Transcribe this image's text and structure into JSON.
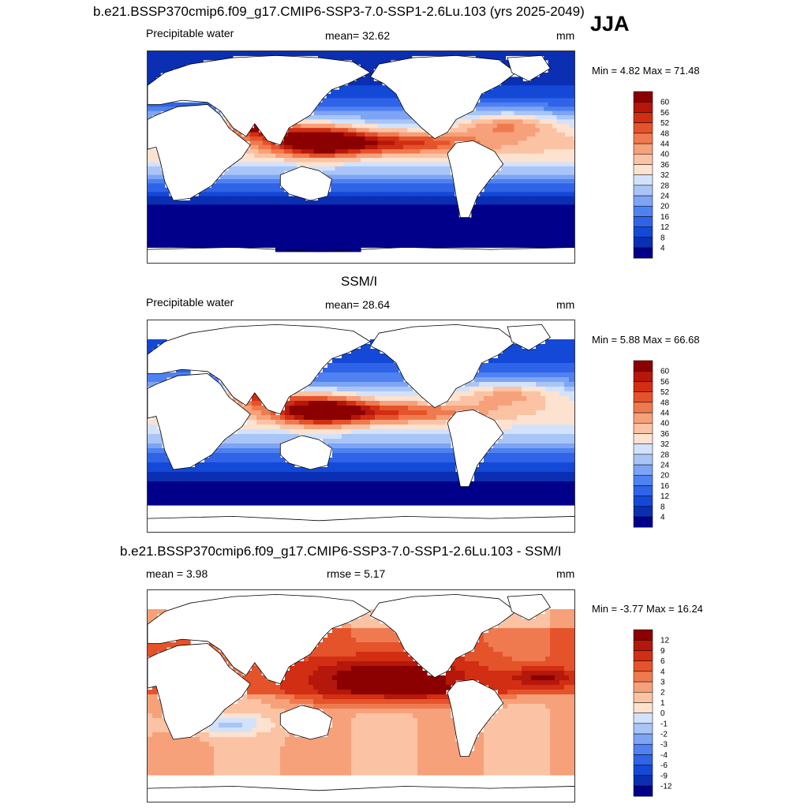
{
  "figure": {
    "title": "b.e21.BSSP370cmip6.f09_g17.CMIP6-SSP3-7.0-SSP1-2.6Lu.103 (yrs 2025-2049)",
    "season": "JJA"
  },
  "panels": [
    {
      "id": "model",
      "heading": "",
      "left_label": "Precipitable water",
      "center_label": "mean=  32.62",
      "units": "mm",
      "minmax": "Min =   4.82 Max =  71.48"
    },
    {
      "id": "obs",
      "heading": "SSM/I",
      "left_label": "Precipitable water",
      "center_label": "mean=  28.64",
      "units": "mm",
      "minmax": "Min =   5.88 Max =  66.68"
    },
    {
      "id": "diff",
      "heading": "b.e21.BSSP370cmip6.f09_g17.CMIP6-SSP3-7.0-SSP1-2.6Lu.103 - SSM/I",
      "left_label": "mean =   3.98",
      "center_label": "rmse =   5.17",
      "units": "mm",
      "minmax": "Min =  -3.77 Max =  16.24"
    }
  ],
  "chart_data": [
    {
      "type": "heatmap",
      "title": "b.e21.BSSP370cmip6.f09_g17.CMIP6-SSP3-7.0-SSP1-2.6Lu.103 (yrs 2025-2049)",
      "subtitle": "Precipitable water",
      "units": "mm",
      "mean": 32.62,
      "min": 4.82,
      "max": 71.48,
      "colorbar_levels": [
        4,
        8,
        12,
        16,
        20,
        24,
        28,
        32,
        36,
        40,
        44,
        48,
        52,
        56,
        60
      ],
      "colors": [
        "#00008b",
        "#0a2fb3",
        "#1448d6",
        "#2f63e8",
        "#4f81f0",
        "#7ea4f5",
        "#a9c5f7",
        "#d3e2fb",
        "#fde2d0",
        "#fbc3a3",
        "#f6a17a",
        "#f07a4f",
        "#e5532b",
        "#d22e13",
        "#b5170a",
        "#8b0000"
      ],
      "regions_approx": [
        {
          "region": "western Pacific warm pool",
          "value": 60
        },
        {
          "region": "Bay of Bengal / South Asia",
          "value": 64
        },
        {
          "region": "equatorial Pacific",
          "value": 52
        },
        {
          "region": "tropical Atlantic",
          "value": 44
        },
        {
          "region": "subtropical oceans",
          "value": 28
        },
        {
          "region": "southern midlatitude oceans",
          "value": 14
        },
        {
          "region": "Southern Ocean",
          "value": 6
        }
      ]
    },
    {
      "type": "heatmap",
      "title": "SSM/I",
      "subtitle": "Precipitable water",
      "units": "mm",
      "mean": 28.64,
      "min": 5.88,
      "max": 66.68,
      "colorbar_levels": [
        4,
        8,
        12,
        16,
        20,
        24,
        28,
        32,
        36,
        40,
        44,
        48,
        52,
        56,
        60
      ],
      "colors": [
        "#00008b",
        "#0a2fb3",
        "#1448d6",
        "#2f63e8",
        "#4f81f0",
        "#7ea4f5",
        "#a9c5f7",
        "#d3e2fb",
        "#fde2d0",
        "#fbc3a3",
        "#f6a17a",
        "#f07a4f",
        "#e5532b",
        "#d22e13",
        "#b5170a",
        "#8b0000"
      ],
      "regions_approx": [
        {
          "region": "western Pacific warm pool",
          "value": 56
        },
        {
          "region": "Bay of Bengal",
          "value": 52
        },
        {
          "region": "equatorial Pacific",
          "value": 48
        },
        {
          "region": "tropical Atlantic",
          "value": 40
        },
        {
          "region": "subtropical oceans",
          "value": 26
        },
        {
          "region": "southern midlatitude oceans",
          "value": 12
        },
        {
          "region": "Southern Ocean",
          "value": 8
        }
      ]
    },
    {
      "type": "heatmap",
      "title": "b.e21.BSSP370cmip6.f09_g17.CMIP6-SSP3-7.0-SSP1-2.6Lu.103 - SSM/I",
      "units": "mm",
      "mean": 3.98,
      "rmse": 5.17,
      "min": -3.77,
      "max": 16.24,
      "colorbar_levels": [
        -12,
        -9,
        -6,
        -4,
        -3,
        -2,
        -1,
        0,
        1,
        2,
        3,
        4,
        6,
        9,
        12
      ],
      "colors": [
        "#00008b",
        "#0a2fb3",
        "#1448d6",
        "#2f63e8",
        "#4f81f0",
        "#7ea4f5",
        "#a9c5f7",
        "#d3e2fb",
        "#fde2d0",
        "#fbc3a3",
        "#f6a17a",
        "#f07a4f",
        "#e5532b",
        "#d22e13",
        "#b5170a",
        "#8b0000"
      ],
      "regions_approx": [
        {
          "region": "central North Pacific",
          "value": 12
        },
        {
          "region": "equatorial Pacific",
          "value": 6
        },
        {
          "region": "tropical Atlantic",
          "value": 9
        },
        {
          "region": "subtropical South Indian Ocean",
          "value": -1
        },
        {
          "region": "southern midlatitude oceans",
          "value": 2
        }
      ]
    }
  ]
}
